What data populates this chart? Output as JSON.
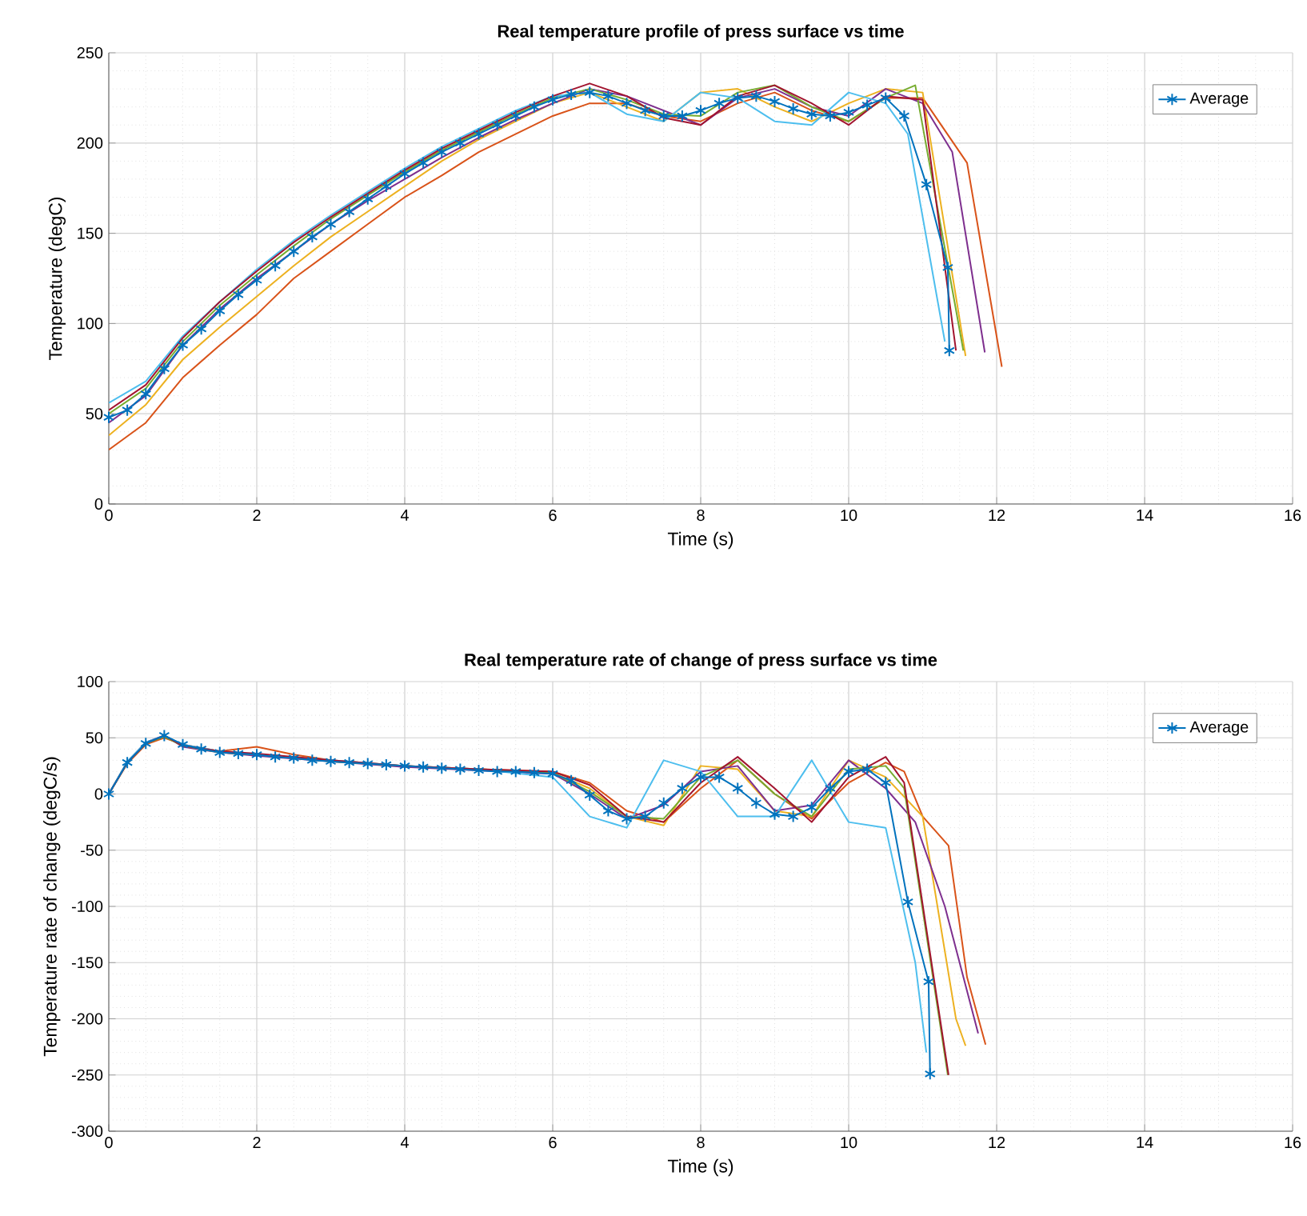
{
  "chart_data": [
    {
      "type": "line",
      "title": "Real temperature profile of press surface vs time",
      "xlabel": "Time (s)",
      "ylabel": "Temperature (degC)",
      "xlim": [
        0,
        16
      ],
      "ylim": [
        0,
        250
      ],
      "xticks": [
        0,
        2,
        4,
        6,
        8,
        10,
        12,
        14,
        16
      ],
      "yticks": [
        0,
        50,
        100,
        150,
        200,
        250
      ],
      "grid": true,
      "legend": "top right",
      "marker": "none",
      "line_style": "solid",
      "series": [
        {
          "color": "#d95319",
          "x": [
            0,
            0.5,
            1,
            1.5,
            2,
            2.5,
            3,
            3.5,
            4,
            4.5,
            5,
            5.5,
            6,
            6.5,
            7,
            7.5,
            8,
            8.5,
            9,
            9.5,
            10,
            10.5,
            11,
            11.6,
            12.07
          ],
          "values": [
            30,
            45,
            70,
            88,
            105,
            125,
            140,
            155,
            170,
            182,
            195,
            205,
            215,
            222,
            222,
            215,
            212,
            222,
            228,
            218,
            212,
            225,
            225,
            189,
            76
          ]
        },
        {
          "color": "#edb120",
          "x": [
            0,
            0.5,
            1,
            1.5,
            2,
            2.5,
            3,
            3.5,
            4,
            4.5,
            5,
            5.5,
            6,
            6.5,
            7,
            7.5,
            8,
            8.5,
            9,
            9.5,
            10,
            10.5,
            11,
            11.58
          ],
          "values": [
            38,
            55,
            80,
            98,
            115,
            132,
            148,
            162,
            176,
            190,
            202,
            212,
            222,
            228,
            220,
            212,
            228,
            230,
            220,
            212,
            222,
            230,
            228,
            82
          ]
        },
        {
          "color": "#7e2f8e",
          "x": [
            0,
            0.5,
            1,
            1.5,
            2,
            2.5,
            3,
            3.5,
            4,
            4.5,
            5,
            5.5,
            6,
            6.5,
            7,
            7.5,
            8,
            8.5,
            9,
            9.5,
            10,
            10.5,
            11,
            11.4,
            11.84
          ],
          "values": [
            45,
            60,
            88,
            108,
            125,
            140,
            155,
            168,
            180,
            192,
            203,
            213,
            222,
            230,
            226,
            218,
            210,
            225,
            230,
            220,
            215,
            230,
            222,
            195,
            84
          ]
        },
        {
          "color": "#77ac30",
          "x": [
            0,
            0.5,
            1,
            1.5,
            2,
            2.5,
            3,
            3.5,
            4,
            4.5,
            5,
            5.5,
            6,
            6.5,
            7,
            7.5,
            8,
            8.5,
            9,
            9.5,
            10,
            10.5,
            10.9,
            11.55
          ],
          "values": [
            50,
            64,
            90,
            110,
            127,
            143,
            158,
            171,
            184,
            196,
            206,
            216,
            225,
            230,
            224,
            216,
            215,
            228,
            232,
            220,
            212,
            225,
            232,
            85
          ]
        },
        {
          "color": "#4dbeee",
          "x": [
            0,
            0.5,
            1,
            1.5,
            2,
            2.5,
            3,
            3.5,
            4,
            4.5,
            5,
            5.5,
            6,
            6.5,
            7,
            7.5,
            8,
            8.5,
            9,
            9.5,
            10,
            10.5,
            10.8,
            11.3
          ],
          "values": [
            56,
            68,
            93,
            112,
            130,
            146,
            160,
            173,
            186,
            198,
            208,
            218,
            226,
            228,
            216,
            212,
            228,
            225,
            212,
            210,
            228,
            222,
            205,
            90
          ]
        },
        {
          "color": "#a2142f",
          "x": [
            0,
            0.5,
            1,
            1.5,
            2,
            2.5,
            3,
            3.5,
            4,
            4.5,
            5,
            5.5,
            6,
            6.5,
            7,
            7.5,
            8,
            8.5,
            9,
            9.5,
            10,
            10.5,
            11,
            11.45
          ],
          "values": [
            52,
            66,
            92,
            112,
            129,
            145,
            159,
            172,
            185,
            197,
            207,
            217,
            226,
            233,
            226,
            214,
            210,
            226,
            232,
            222,
            210,
            226,
            224,
            85
          ]
        },
        {
          "name": "Average",
          "color": "#0072bd",
          "marker": "cross",
          "x": [
            0,
            0.25,
            0.5,
            0.75,
            1,
            1.25,
            1.5,
            1.75,
            2,
            2.25,
            2.5,
            2.75,
            3,
            3.25,
            3.5,
            3.75,
            4,
            4.25,
            4.5,
            4.75,
            5,
            5.25,
            5.5,
            5.75,
            6,
            6.25,
            6.5,
            6.75,
            7,
            7.25,
            7.5,
            7.75,
            8,
            8.25,
            8.5,
            8.75,
            9,
            9.25,
            9.5,
            9.75,
            10,
            10.25,
            10.5,
            10.75,
            11.05,
            11.34,
            11.36
          ],
          "values": [
            48,
            52,
            61,
            75,
            88,
            97,
            107,
            116,
            124,
            132,
            140,
            148,
            155,
            162,
            169,
            176,
            183,
            189,
            195,
            200,
            205,
            210,
            215,
            220,
            224,
            227,
            228,
            226,
            222,
            218,
            215,
            215,
            218,
            222,
            225,
            226,
            223,
            219,
            216,
            215,
            217,
            221,
            225,
            215,
            177,
            131,
            85
          ]
        }
      ]
    },
    {
      "type": "line",
      "title": "Real temperature rate of change of press surface vs time",
      "xlabel": "Time (s)",
      "ylabel": "Temperature rate of change (degC/s)",
      "xlim": [
        0,
        16
      ],
      "ylim": [
        -300,
        100
      ],
      "xticks": [
        0,
        2,
        4,
        6,
        8,
        10,
        12,
        14,
        16
      ],
      "yticks": [
        -300,
        -250,
        -200,
        -150,
        -100,
        -50,
        0,
        50,
        100
      ],
      "grid": true,
      "legend": "top right",
      "marker": "none",
      "line_style": "solid",
      "series": [
        {
          "color": "#d95319",
          "x": [
            0,
            0.25,
            0.5,
            0.75,
            1,
            1.5,
            2,
            2.5,
            3,
            4,
            5,
            6,
            6.5,
            7,
            7.5,
            8,
            8.5,
            9,
            9.5,
            10,
            10.5,
            10.75,
            11,
            11.35,
            11.6,
            11.85
          ],
          "values": [
            0,
            27,
            44,
            50,
            44,
            38,
            42,
            35,
            30,
            25,
            22,
            20,
            10,
            -15,
            -25,
            5,
            30,
            0,
            -22,
            10,
            28,
            20,
            -20,
            -46,
            -163,
            -223
          ]
        },
        {
          "color": "#edb120",
          "x": [
            5,
            6,
            6.5,
            7,
            7.5,
            8,
            8.5,
            9,
            9.5,
            10,
            10.5,
            11,
            11.45,
            11.58
          ],
          "values": [
            22,
            19,
            5,
            -20,
            -28,
            25,
            22,
            -15,
            -20,
            30,
            15,
            -20,
            -200,
            -224
          ]
        },
        {
          "color": "#7e2f8e",
          "x": [
            0,
            0.25,
            0.5,
            0.75,
            1,
            1.5,
            2,
            3,
            4,
            5,
            6,
            6.5,
            7,
            7.5,
            8,
            8.5,
            9,
            9.5,
            10,
            10.5,
            10.9,
            11.3,
            11.75
          ],
          "values": [
            0,
            28,
            46,
            52,
            42,
            37,
            34,
            29,
            24,
            21,
            18,
            0,
            -22,
            -10,
            20,
            25,
            -15,
            -10,
            30,
            5,
            -25,
            -100,
            -213
          ]
        },
        {
          "color": "#77ac30",
          "x": [
            0,
            0.25,
            0.5,
            0.75,
            1,
            1.5,
            2,
            3,
            4,
            5,
            6,
            6.5,
            7,
            7.5,
            8,
            8.5,
            9,
            9.5,
            10,
            10.5,
            10.75,
            11.34
          ],
          "values": [
            0,
            28,
            45,
            51,
            43,
            37,
            35,
            29,
            25,
            22,
            19,
            2,
            -20,
            -22,
            15,
            30,
            0,
            -20,
            22,
            25,
            5,
            -250
          ]
        },
        {
          "color": "#4dbeee",
          "x": [
            0,
            0.25,
            0.5,
            0.75,
            1,
            1.5,
            2,
            3,
            4,
            5,
            6,
            6.5,
            7,
            7.5,
            8,
            8.5,
            9,
            9.5,
            10,
            10.5,
            10.9,
            11.05
          ],
          "values": [
            0,
            29,
            46,
            52,
            44,
            38,
            35,
            30,
            25,
            22,
            15,
            -20,
            -30,
            30,
            20,
            -20,
            -20,
            30,
            -25,
            -30,
            -150,
            -230
          ]
        },
        {
          "color": "#a2142f",
          "x": [
            0,
            0.25,
            0.5,
            0.75,
            1,
            1.5,
            2,
            3,
            4,
            5,
            6,
            6.5,
            7,
            7.5,
            8,
            8.5,
            9,
            9.5,
            10,
            10.5,
            10.75,
            11.35
          ],
          "values": [
            0,
            28,
            45,
            52,
            43,
            38,
            36,
            30,
            25,
            22,
            20,
            8,
            -20,
            -25,
            10,
            33,
            5,
            -25,
            15,
            33,
            10,
            -250
          ]
        },
        {
          "name": "Average",
          "color": "#0072bd",
          "marker": "cross",
          "x": [
            0,
            0.25,
            0.5,
            0.75,
            1,
            1.25,
            1.5,
            1.75,
            2,
            2.25,
            2.5,
            2.75,
            3,
            3.25,
            3.5,
            3.75,
            4,
            4.25,
            4.5,
            4.75,
            5,
            5.25,
            5.5,
            5.75,
            6,
            6.25,
            6.5,
            6.75,
            7,
            7.25,
            7.5,
            7.75,
            8,
            8.25,
            8.5,
            8.75,
            9,
            9.25,
            9.5,
            9.75,
            10,
            10.25,
            10.5,
            10.8,
            11.08,
            11.1
          ],
          "values": [
            0,
            28,
            45,
            52,
            44,
            40,
            37,
            36,
            35,
            33,
            32,
            30,
            29,
            28,
            27,
            26,
            25,
            24,
            23,
            22,
            21,
            20,
            20,
            19,
            18,
            12,
            -1,
            -15,
            -22,
            -20,
            -8,
            5,
            15,
            15,
            5,
            -8,
            -18,
            -20,
            -12,
            5,
            20,
            22,
            10,
            -96,
            -167,
            -249
          ]
        }
      ]
    }
  ]
}
